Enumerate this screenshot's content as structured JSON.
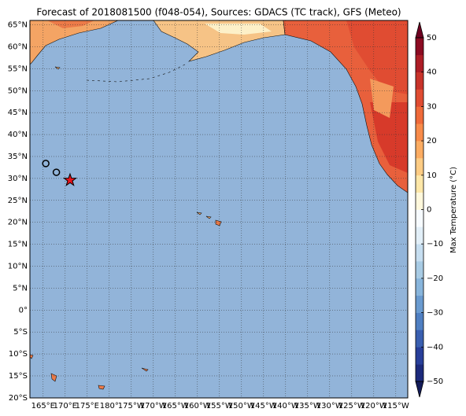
{
  "title": "Forecast of 2018081500 (f048-054), Sources: GDACS (TC track), GFS (Meteo)",
  "map": {
    "lat_labels": [
      "65°N",
      "60°N",
      "55°N",
      "50°N",
      "45°N",
      "40°N",
      "35°N",
      "30°N",
      "25°N",
      "20°N",
      "15°N",
      "10°N",
      "5°N",
      "0°",
      "5°S",
      "10°S",
      "15°S",
      "20°S"
    ],
    "lon_labels": [
      "165°E",
      "170°E",
      "175°E",
      "180°",
      "175°W",
      "170°W",
      "165°W",
      "160°W",
      "155°W",
      "150°W",
      "145°W",
      "140°W",
      "135°W",
      "130°W",
      "125°W",
      "120°W",
      "115°W"
    ],
    "track": [
      {
        "lon": 165.6,
        "lat": 33.4
      },
      {
        "lon": 168.0,
        "lat": 31.4
      },
      {
        "lon": 171.1,
        "lat": 29.6
      }
    ]
  },
  "colorbar": {
    "label": "Max Temperature (°C)",
    "ticks": [
      50,
      40,
      30,
      20,
      10,
      0,
      {
        "value": -10,
        "label": "−10"
      },
      {
        "value": -20,
        "label": "−20"
      },
      {
        "value": -30,
        "label": "−30"
      },
      {
        "value": -40,
        "label": "−40"
      },
      {
        "value": -50,
        "label": "−50"
      }
    ]
  }
}
